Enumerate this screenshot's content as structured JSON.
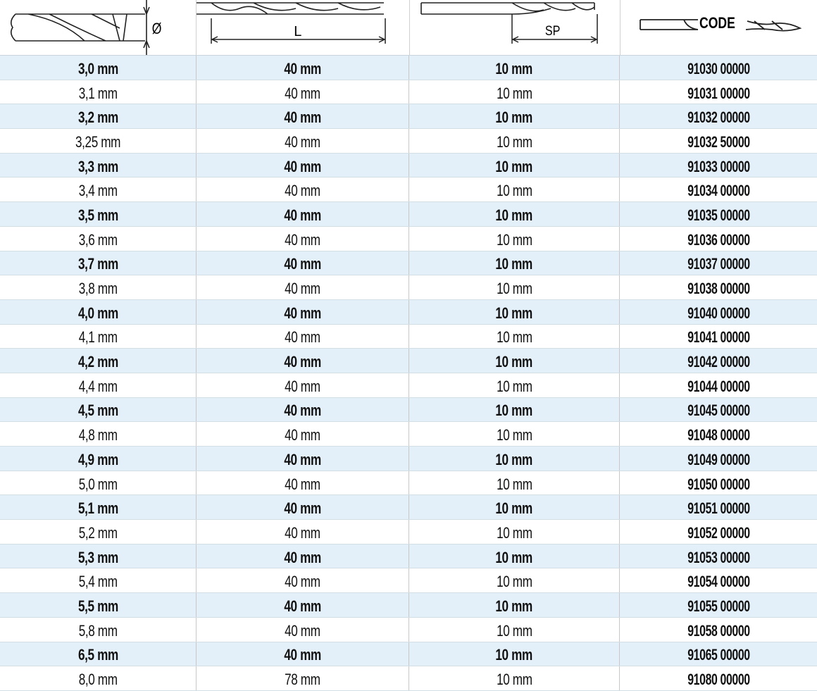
{
  "header": {
    "diameter_label": "Ø",
    "length_label": "L",
    "spiral_label": "SP",
    "code_label": "CODE",
    "icons": [
      "drill-diameter-icon",
      "drill-length-icon",
      "drill-spiral-length-icon",
      "drill-code-icon"
    ]
  },
  "colors": {
    "alt_row": "#e4f0f9",
    "text": "#111111"
  },
  "rows": [
    [
      "3,0 mm",
      "40 mm",
      "10 mm",
      "91030 00000"
    ],
    [
      "3,1 mm",
      "40 mm",
      "10 mm",
      "91031 00000"
    ],
    [
      "3,2 mm",
      "40 mm",
      "10 mm",
      "91032 00000"
    ],
    [
      "3,25 mm",
      "40 mm",
      "10 mm",
      "91032 50000"
    ],
    [
      "3,3 mm",
      "40 mm",
      "10 mm",
      "91033 00000"
    ],
    [
      "3,4 mm",
      "40 mm",
      "10 mm",
      "91034 00000"
    ],
    [
      "3,5 mm",
      "40 mm",
      "10 mm",
      "91035 00000"
    ],
    [
      "3,6 mm",
      "40 mm",
      "10 mm",
      "91036 00000"
    ],
    [
      "3,7 mm",
      "40 mm",
      "10 mm",
      "91037 00000"
    ],
    [
      "3,8 mm",
      "40 mm",
      "10 mm",
      "91038 00000"
    ],
    [
      "4,0 mm",
      "40 mm",
      "10 mm",
      "91040 00000"
    ],
    [
      "4,1 mm",
      "40 mm",
      "10 mm",
      "91041 00000"
    ],
    [
      "4,2 mm",
      "40 mm",
      "10 mm",
      "91042 00000"
    ],
    [
      "4,4 mm",
      "40 mm",
      "10 mm",
      "91044 00000"
    ],
    [
      "4,5 mm",
      "40 mm",
      "10 mm",
      "91045 00000"
    ],
    [
      "4,8 mm",
      "40 mm",
      "10 mm",
      "91048 00000"
    ],
    [
      "4,9 mm",
      "40 mm",
      "10 mm",
      "91049 00000"
    ],
    [
      "5,0 mm",
      "40 mm",
      "10 mm",
      "91050 00000"
    ],
    [
      "5,1 mm",
      "40 mm",
      "10 mm",
      "91051 00000"
    ],
    [
      "5,2 mm",
      "40 mm",
      "10 mm",
      "91052 00000"
    ],
    [
      "5,3 mm",
      "40 mm",
      "10 mm",
      "91053 00000"
    ],
    [
      "5,4 mm",
      "40 mm",
      "10 mm",
      "91054 00000"
    ],
    [
      "5,5 mm",
      "40 mm",
      "10 mm",
      "91055 00000"
    ],
    [
      "5,8 mm",
      "40 mm",
      "10 mm",
      "91058 00000"
    ],
    [
      "6,5 mm",
      "40 mm",
      "10 mm",
      "91065 00000"
    ],
    [
      "8,0 mm",
      "78 mm",
      "10 mm",
      "91080 00000"
    ]
  ]
}
